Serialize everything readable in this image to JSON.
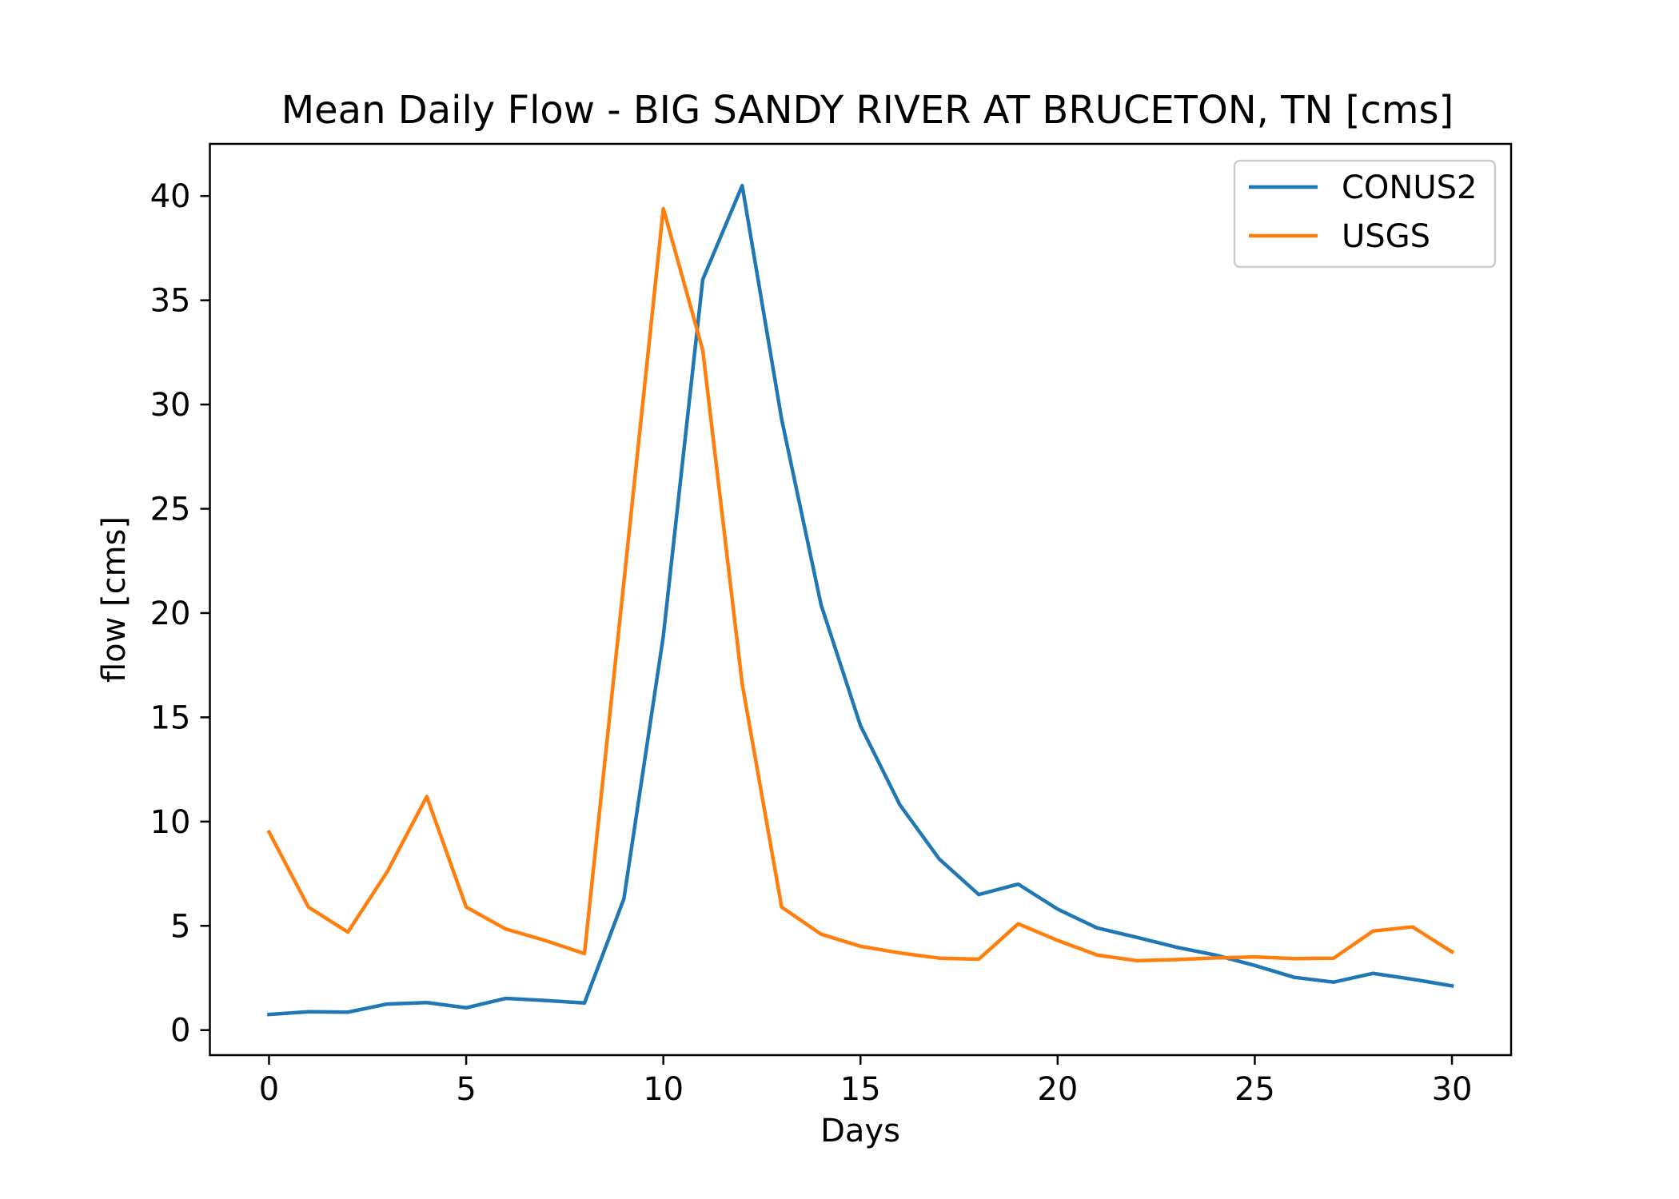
{
  "chart_data": {
    "type": "line",
    "title": "Mean Daily Flow - BIG SANDY RIVER AT BRUCETON, TN [cms]",
    "xlabel": "Days",
    "ylabel": "flow [cms]",
    "xlim": [
      -1.5,
      31.5
    ],
    "ylim": [
      -1.2,
      42.5
    ],
    "xticks": [
      0,
      5,
      10,
      15,
      20,
      25,
      30
    ],
    "yticks": [
      0,
      5,
      10,
      15,
      20,
      25,
      30,
      35,
      40
    ],
    "grid": false,
    "legend_position": "top-right",
    "x": [
      0,
      1,
      2,
      3,
      4,
      5,
      6,
      7,
      8,
      9,
      10,
      11,
      12,
      13,
      14,
      15,
      16,
      17,
      18,
      19,
      20,
      21,
      22,
      23,
      24,
      25,
      26,
      27,
      28,
      29,
      30
    ],
    "series": [
      {
        "name": "CONUS2",
        "color": "#1f77b4",
        "values": [
          0.75,
          0.88,
          0.86,
          1.25,
          1.32,
          1.07,
          1.52,
          1.42,
          1.3,
          6.3,
          18.9,
          36.0,
          40.5,
          29.3,
          20.4,
          14.6,
          10.8,
          8.2,
          6.5,
          7.0,
          5.8,
          4.9,
          4.45,
          3.98,
          3.6,
          3.1,
          2.53,
          2.3,
          2.72,
          2.44,
          2.12
        ]
      },
      {
        "name": "USGS",
        "color": "#ff7f0e",
        "values": [
          9.5,
          5.9,
          4.7,
          7.6,
          11.2,
          5.9,
          4.85,
          4.3,
          3.67,
          21.5,
          39.4,
          32.6,
          16.6,
          5.9,
          4.6,
          4.02,
          3.7,
          3.45,
          3.4,
          5.1,
          4.3,
          3.6,
          3.33,
          3.38,
          3.46,
          3.51,
          3.43,
          3.45,
          4.75,
          4.95,
          3.75
        ]
      }
    ]
  }
}
